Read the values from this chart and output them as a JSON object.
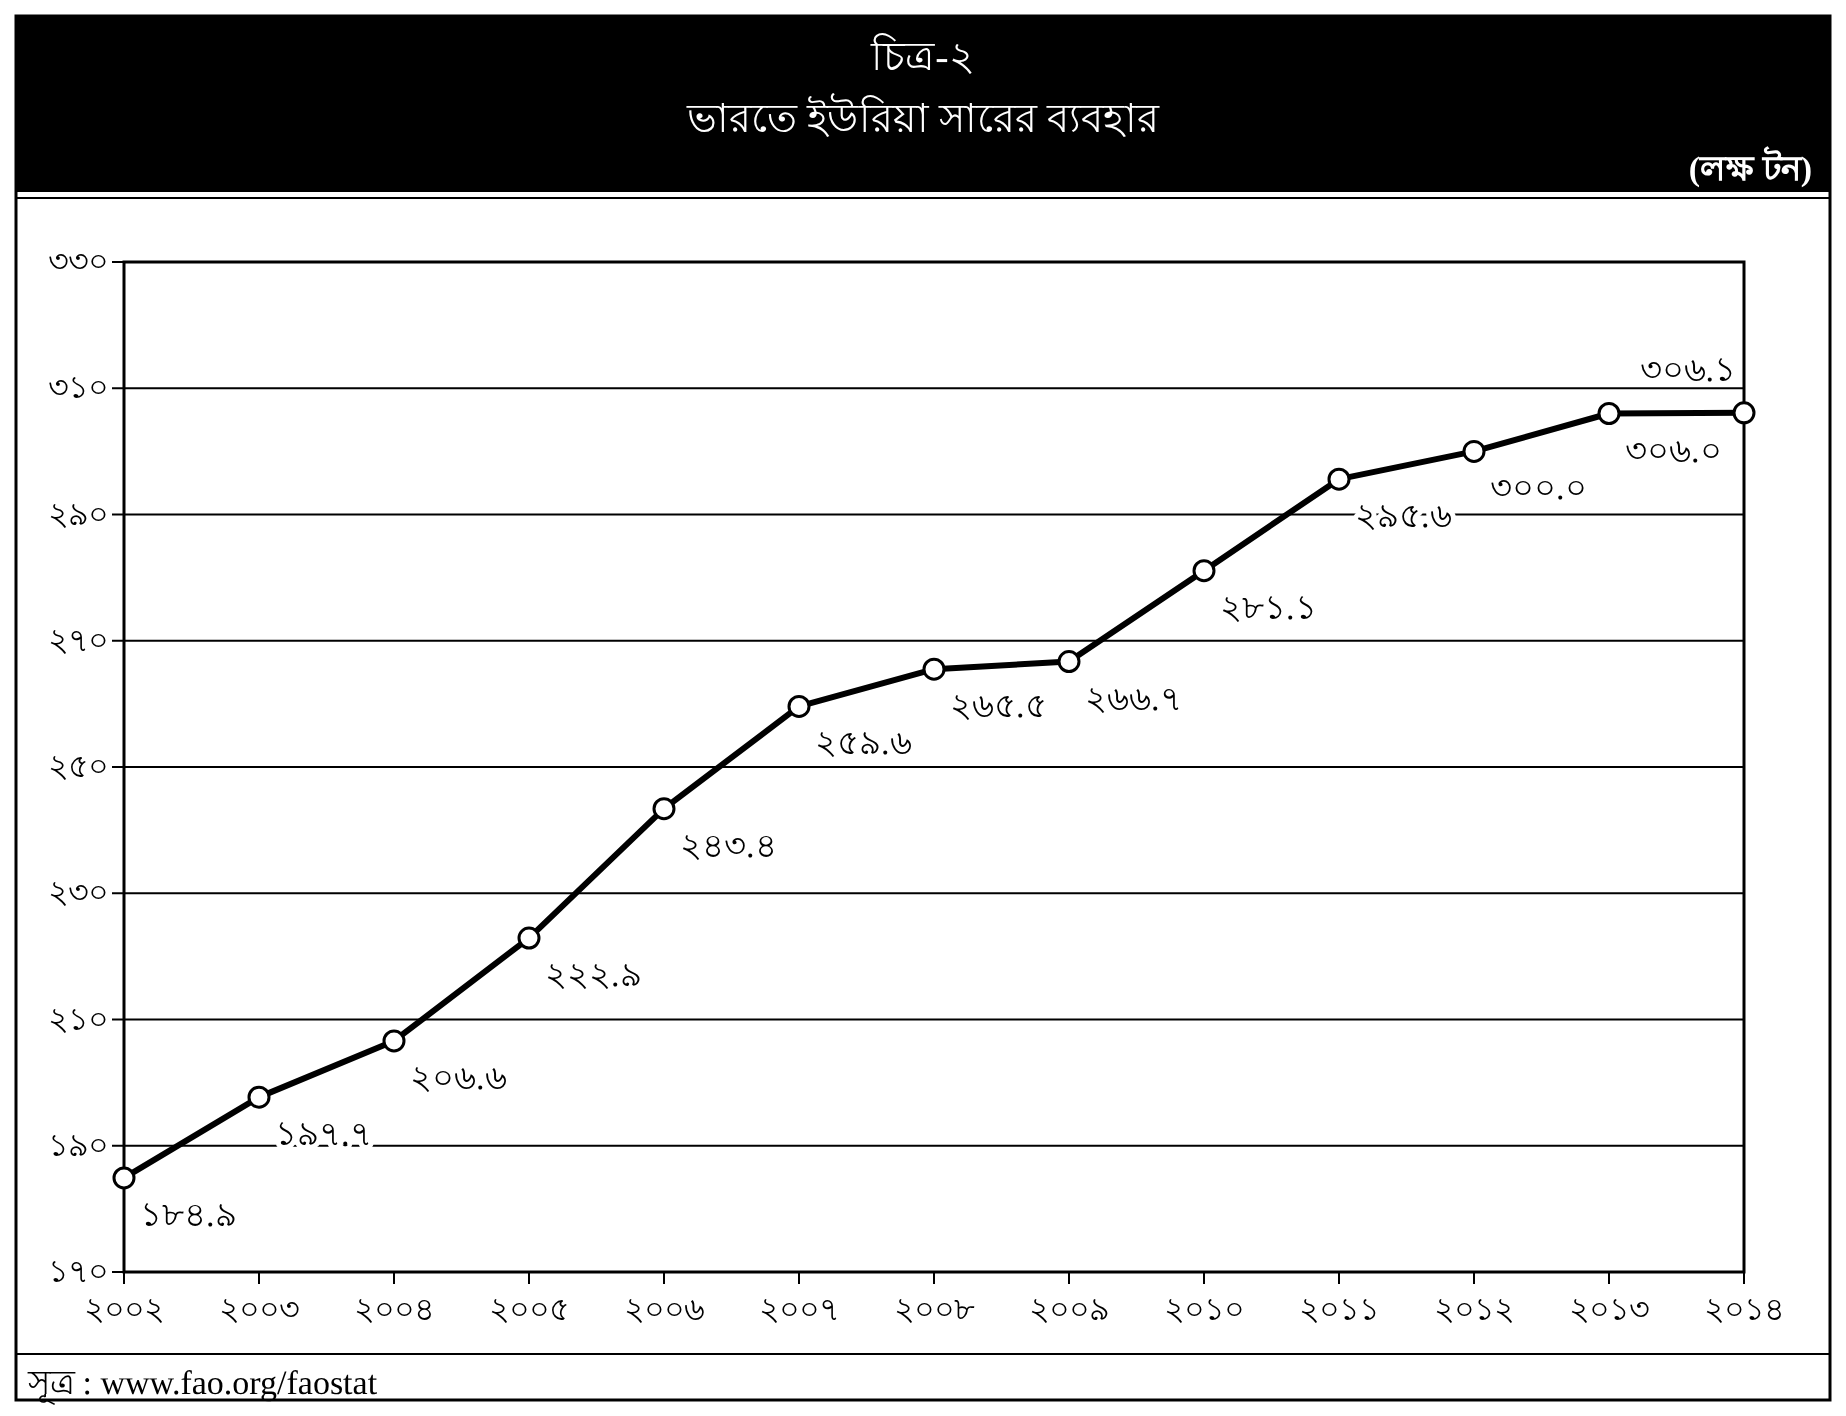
{
  "chart_data": {
    "type": "line",
    "title": "চিত্র-২",
    "subtitle": "ভারতে ইউরিয়া সারের ব্যবহার",
    "ylabel": "(লক্ষ টন)",
    "categories": [
      "২০০২",
      "২০০৩",
      "২০০৪",
      "২০০৫",
      "২০০৬",
      "২০০৭",
      "২০০৮",
      "২০০৯",
      "২০১০",
      "২০১১",
      "২০১২",
      "২০১৩",
      "২০১৪"
    ],
    "series": [
      {
        "color": "#000000",
        "values": [
          184.9,
          197.7,
          206.6,
          222.9,
          243.4,
          259.6,
          265.5,
          266.7,
          281.1,
          295.6,
          300.0,
          306.0,
          306.1
        ],
        "value_labels": [
          "১৮৪.৯",
          "১৯৭.৭",
          "২০৬.৬",
          "২২২.৯",
          "২৪৩.৪",
          "২৫৯.৬",
          "২৬৫.৫",
          "২৬৬.৭",
          "২৮১.১",
          "২৯৫.৬",
          "৩০০.০",
          "৩০৬.০",
          "৩০৬.১"
        ]
      }
    ],
    "ylim": [
      170,
      330
    ],
    "yticks": [
      {
        "value": 170,
        "label": "১৭০"
      },
      {
        "value": 190,
        "label": "১৯০"
      },
      {
        "value": 210,
        "label": "২১০"
      },
      {
        "value": 230,
        "label": "২৩০"
      },
      {
        "value": 250,
        "label": "২৫০"
      },
      {
        "value": 270,
        "label": "২৭০"
      },
      {
        "value": 290,
        "label": "২৯০"
      },
      {
        "value": 310,
        "label": "৩১০"
      },
      {
        "value": 330,
        "label": "৩৩০"
      }
    ],
    "grid": "y",
    "marker": "circle",
    "line_style": "solid",
    "annotations": [
      "সূত্র : www.fao.org/faostat"
    ]
  }
}
